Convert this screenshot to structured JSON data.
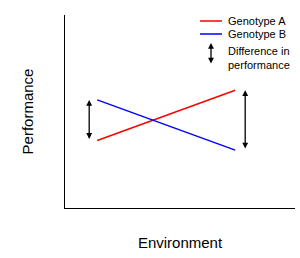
{
  "chart_data": {
    "type": "line",
    "xlabel": "Environment",
    "ylabel": "Performance",
    "x": [
      1.4,
      7.4
    ],
    "series": [
      {
        "name": "Genotype A",
        "color": "#ff0000",
        "values": [
          3.5,
          6.1
        ]
      },
      {
        "name": "Genotype B",
        "color": "#0000ff",
        "values": [
          5.6,
          3.0
        ]
      }
    ],
    "xlim": [
      0,
      10
    ],
    "ylim": [
      0,
      10
    ],
    "tick_labels": false,
    "grid": false,
    "legend": "top right",
    "annotation": "Difference in performance"
  }
}
